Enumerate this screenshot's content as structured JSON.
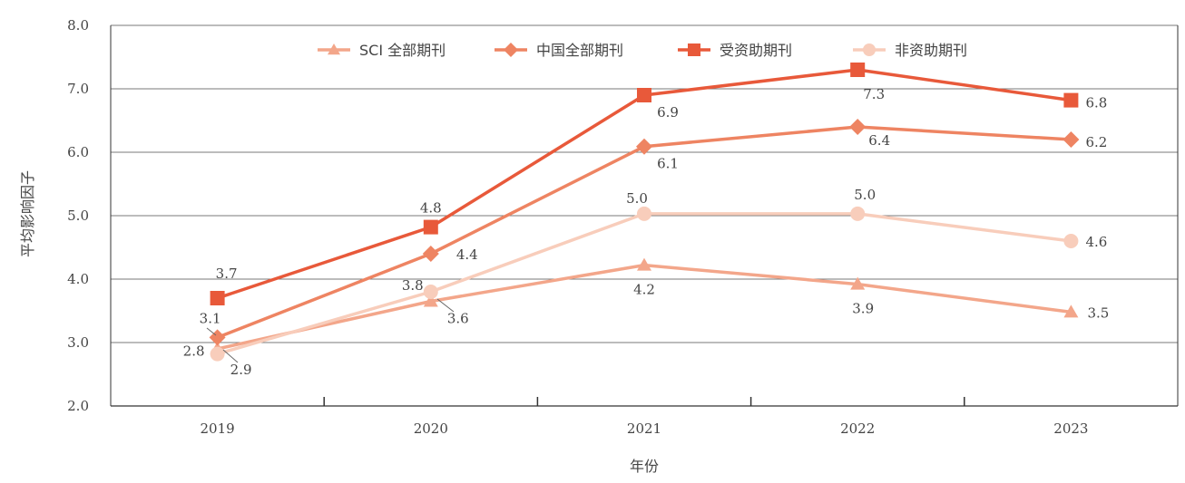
{
  "chart_data": {
    "type": "line",
    "title": "",
    "xlabel": "年份",
    "ylabel": "平均影响因子",
    "categories": [
      "2019",
      "2020",
      "2021",
      "2022",
      "2023"
    ],
    "ylim": [
      2.0,
      8.0
    ],
    "yticks": [
      "2.0",
      "3.0",
      "4.0",
      "5.0",
      "6.0",
      "7.0",
      "8.0"
    ],
    "grid": true,
    "legend_position": "top-center",
    "series": [
      {
        "name": "SCI 全部期刊",
        "marker": "triangle",
        "color": "#F3A68A",
        "values": [
          2.9,
          3.65,
          4.22,
          3.92,
          3.48
        ],
        "labels": [
          "2.9",
          "3.6",
          "4.2",
          "3.9",
          "3.5"
        ]
      },
      {
        "name": "中国全部期刊",
        "marker": "diamond",
        "color": "#EE8462",
        "values": [
          3.08,
          4.4,
          6.09,
          6.4,
          6.2
        ],
        "labels": [
          "3.1",
          "4.4",
          "6.1",
          "6.4",
          "6.2"
        ]
      },
      {
        "name": "受资助期刊",
        "marker": "square",
        "color": "#E8593A",
        "values": [
          3.7,
          4.82,
          6.9,
          7.3,
          6.82
        ],
        "labels": [
          "3.7",
          "4.8",
          "6.9",
          "7.3",
          "6.8"
        ]
      },
      {
        "name": "非资助期刊",
        "marker": "circle",
        "color": "#F8CDBB",
        "values": [
          2.82,
          3.8,
          5.03,
          5.03,
          4.6
        ],
        "labels": [
          "2.8",
          "3.8",
          "5.0",
          "5.0",
          "4.6"
        ]
      }
    ]
  }
}
